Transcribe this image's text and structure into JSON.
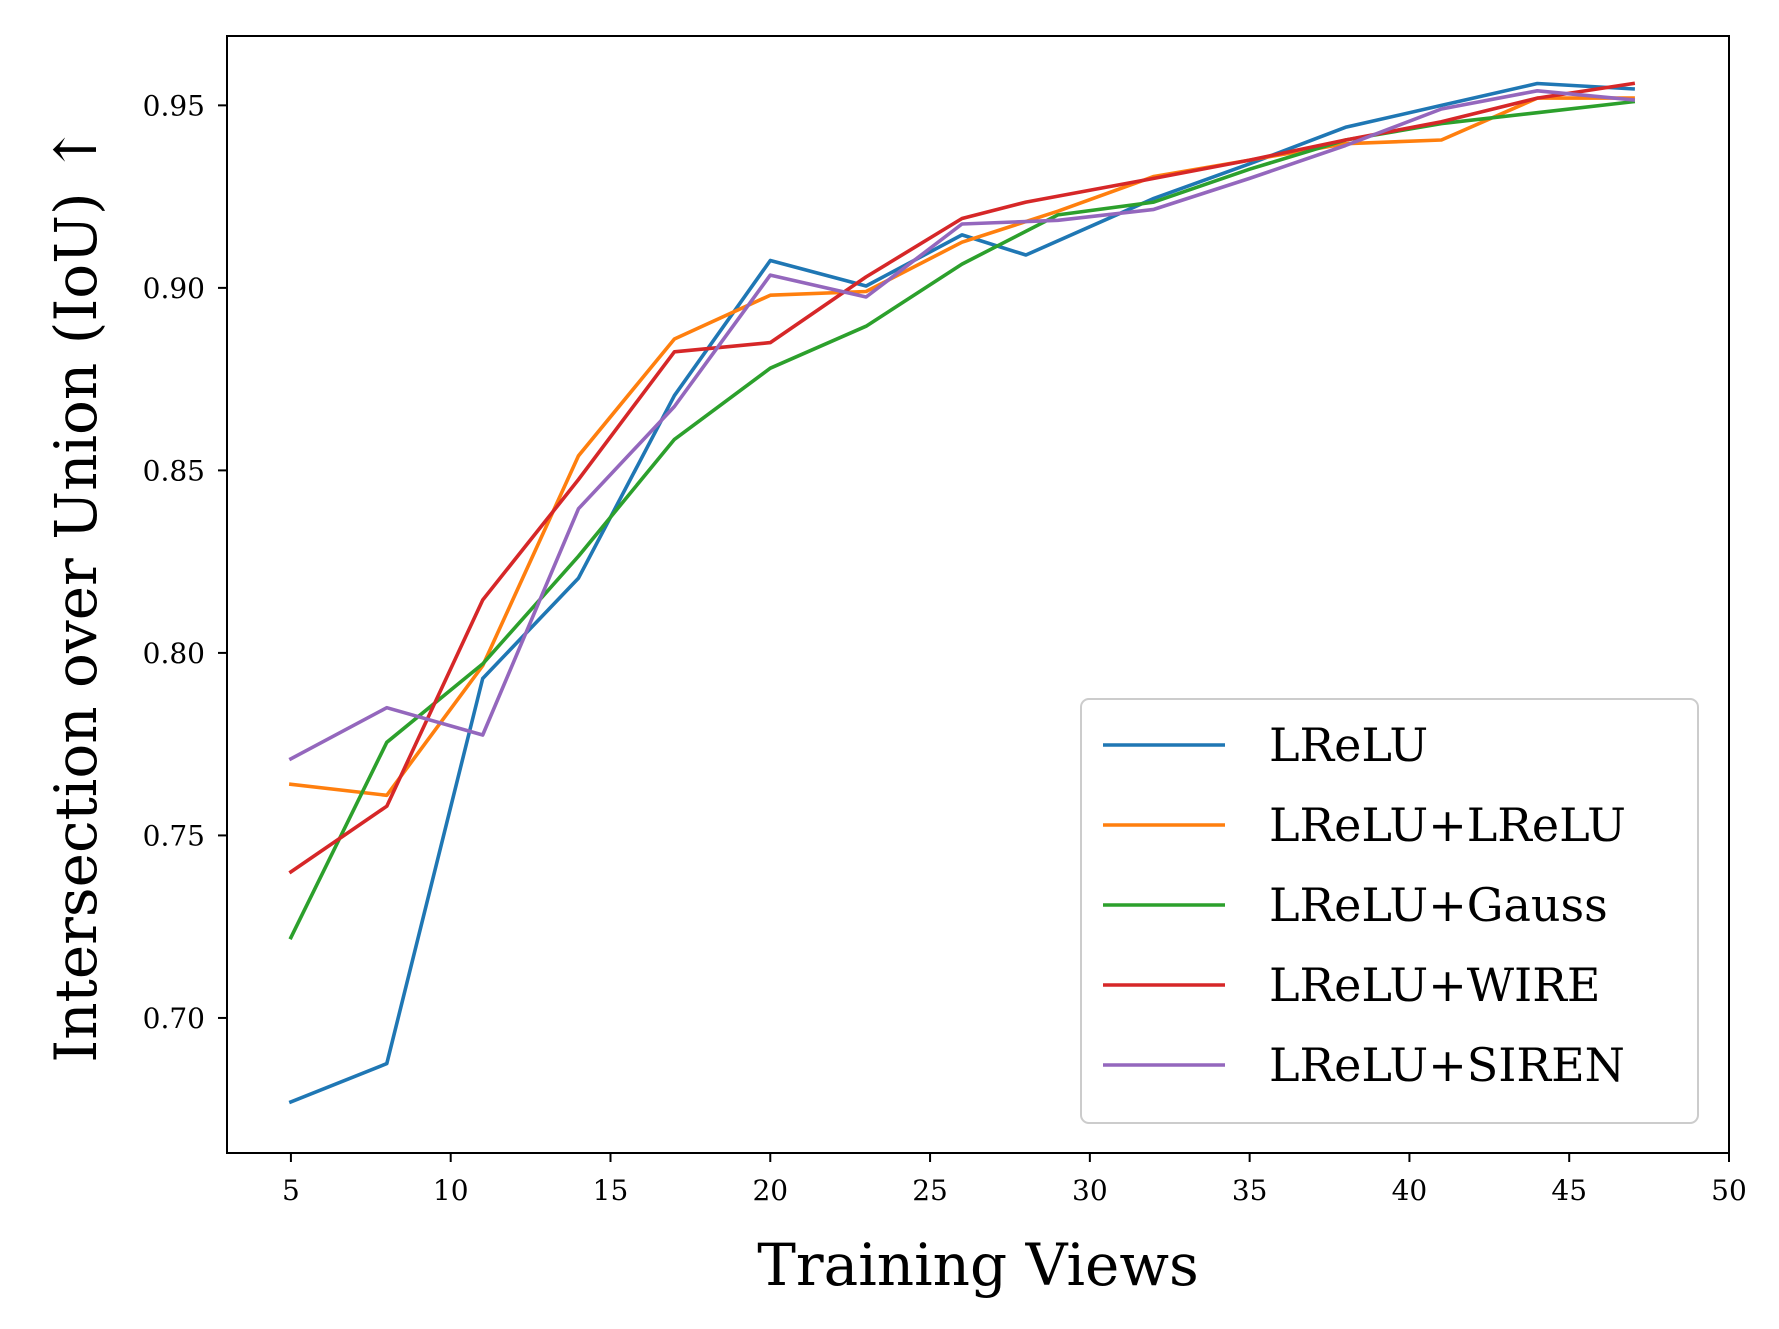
{
  "chart_data": {
    "type": "line",
    "title": "",
    "xlabel": "Training Views",
    "ylabel": "Intersection over Union (IoU) ↑",
    "xlim": [
      3,
      50
    ],
    "ylim": [
      0.663,
      0.969
    ],
    "xticks": [
      5,
      10,
      15,
      20,
      25,
      30,
      35,
      40,
      45,
      50
    ],
    "xtick_labels": [
      "5",
      "10",
      "15",
      "20",
      "25",
      "30",
      "35",
      "40",
      "45",
      "50"
    ],
    "yticks": [
      0.7,
      0.75,
      0.8,
      0.85,
      0.9,
      0.95
    ],
    "ytick_labels": [
      "0.70",
      "0.75",
      "0.80",
      "0.85",
      "0.90",
      "0.95"
    ],
    "grid": false,
    "legend_position": "lower-right",
    "series": [
      {
        "name": "LReLU",
        "color": "#1f77b4",
        "x": [
          5,
          8,
          11,
          14,
          17,
          20,
          23,
          26,
          28,
          32,
          35,
          38,
          41,
          44,
          47
        ],
        "y": [
          0.677,
          0.6875,
          0.793,
          0.8205,
          0.8705,
          0.9075,
          0.9005,
          0.9145,
          0.909,
          0.9245,
          0.934,
          0.944,
          0.95,
          0.956,
          0.9545
        ]
      },
      {
        "name": "LReLU+LReLU",
        "color": "#ff7f0e",
        "x": [
          5,
          8,
          11,
          14,
          17,
          20,
          23,
          26,
          29,
          32,
          35,
          38,
          41,
          44,
          47
        ],
        "y": [
          0.764,
          0.761,
          0.7965,
          0.854,
          0.886,
          0.898,
          0.899,
          0.9125,
          0.921,
          0.9305,
          0.935,
          0.9395,
          0.9405,
          0.952,
          0.952
        ]
      },
      {
        "name": "LReLU+Gauss",
        "color": "#2ca02c",
        "x": [
          5,
          8,
          11,
          14,
          17,
          20,
          23,
          26,
          29,
          32,
          35,
          38,
          41,
          44,
          47
        ],
        "y": [
          0.722,
          0.7755,
          0.797,
          0.8265,
          0.8585,
          0.878,
          0.8895,
          0.9065,
          0.92,
          0.9235,
          0.9325,
          0.9405,
          0.945,
          0.948,
          0.951
        ]
      },
      {
        "name": "LReLU+WIRE",
        "color": "#d62728",
        "x": [
          5,
          8,
          11,
          14,
          17,
          20,
          23,
          26,
          28,
          32,
          35,
          38,
          41,
          44,
          47
        ],
        "y": [
          0.74,
          0.758,
          0.8145,
          0.8475,
          0.8825,
          0.885,
          0.903,
          0.919,
          0.9235,
          0.93,
          0.935,
          0.9405,
          0.9455,
          0.952,
          0.956
        ]
      },
      {
        "name": "LReLU+SIREN",
        "color": "#9467bd",
        "x": [
          5,
          8,
          11,
          14,
          17,
          20,
          23,
          26,
          29,
          32,
          35,
          38,
          41,
          44,
          47
        ],
        "y": [
          0.771,
          0.785,
          0.7775,
          0.8395,
          0.8675,
          0.9035,
          0.8975,
          0.9175,
          0.9185,
          0.9215,
          0.93,
          0.939,
          0.949,
          0.954,
          0.9515
        ]
      }
    ]
  }
}
